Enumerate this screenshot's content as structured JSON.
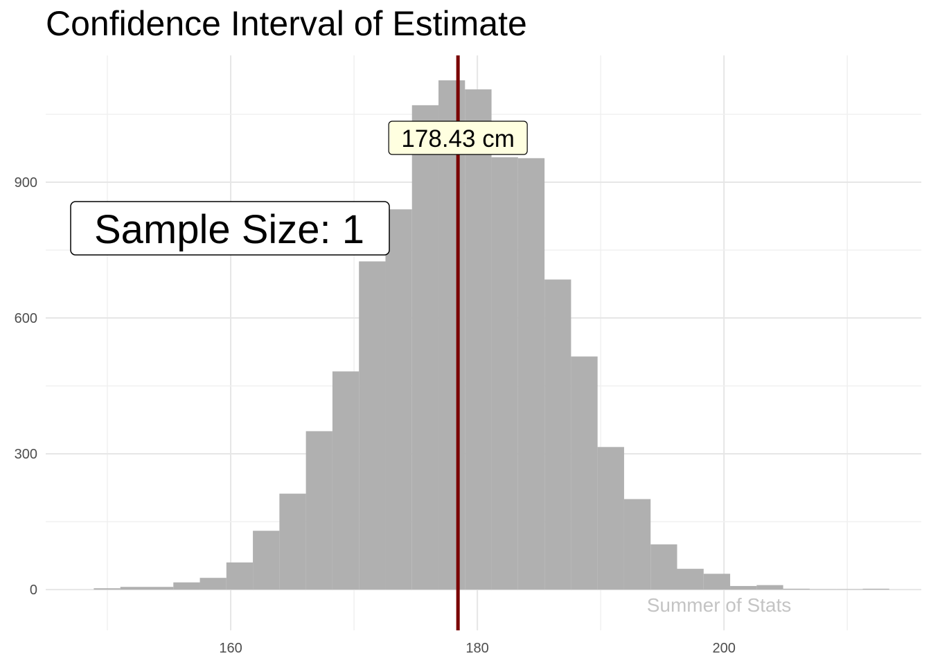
{
  "chart_data": {
    "type": "bar",
    "title": "Confidence Interval of Estimate",
    "xlabel": "",
    "ylabel": "",
    "x_ticks": [
      160,
      180,
      200
    ],
    "y_ticks": [
      0,
      300,
      600,
      900
    ],
    "xlim": [
      145,
      216
    ],
    "ylim": [
      -90,
      1180
    ],
    "grid": true,
    "bin_width": 2.15,
    "bins": [
      {
        "start": 148.9,
        "count": 3
      },
      {
        "start": 151.05,
        "count": 6
      },
      {
        "start": 153.2,
        "count": 6
      },
      {
        "start": 155.35,
        "count": 16
      },
      {
        "start": 157.5,
        "count": 26
      },
      {
        "start": 159.65,
        "count": 60
      },
      {
        "start": 161.8,
        "count": 130
      },
      {
        "start": 163.95,
        "count": 212
      },
      {
        "start": 166.1,
        "count": 350
      },
      {
        "start": 168.25,
        "count": 482
      },
      {
        "start": 170.4,
        "count": 725
      },
      {
        "start": 172.55,
        "count": 840
      },
      {
        "start": 174.7,
        "count": 1070
      },
      {
        "start": 176.85,
        "count": 1125
      },
      {
        "start": 179.0,
        "count": 1105
      },
      {
        "start": 181.15,
        "count": 955
      },
      {
        "start": 183.3,
        "count": 953
      },
      {
        "start": 185.45,
        "count": 685
      },
      {
        "start": 187.6,
        "count": 515
      },
      {
        "start": 189.75,
        "count": 315
      },
      {
        "start": 191.9,
        "count": 200
      },
      {
        "start": 194.05,
        "count": 100
      },
      {
        "start": 196.2,
        "count": 46
      },
      {
        "start": 198.35,
        "count": 35
      },
      {
        "start": 200.5,
        "count": 8
      },
      {
        "start": 202.65,
        "count": 10
      },
      {
        "start": 204.8,
        "count": 2
      },
      {
        "start": 206.95,
        "count": 1
      },
      {
        "start": 209.1,
        "count": 1
      },
      {
        "start": 211.25,
        "count": 2
      }
    ],
    "estimate": 178.43,
    "estimate_label": "178.43 cm",
    "sample_size_label": "Sample Size:  1",
    "watermark": "Summer of Stats",
    "colors": {
      "bars": "#b0b0b0",
      "estimate_line": "#7a0000",
      "estimate_label_fill": "#ffffe0",
      "watermark": "#c4c4c4"
    }
  }
}
